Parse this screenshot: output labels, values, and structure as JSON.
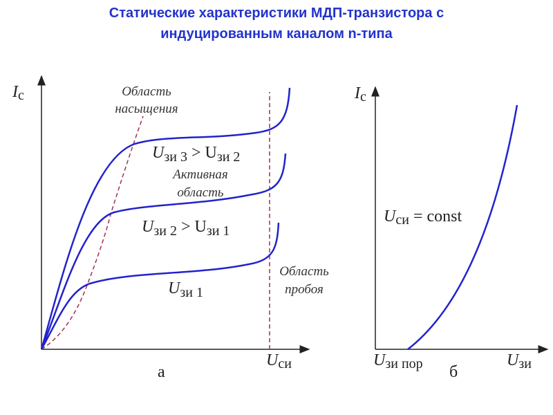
{
  "title": {
    "line1": "Статические характеристики МДП-транзистора с",
    "line2": "индуцированным каналом n-типа"
  },
  "chart_a": {
    "y_label": {
      "symbol": "I",
      "sub": "с"
    },
    "x_label": {
      "symbol": "U",
      "sub": "си"
    },
    "caption": "а",
    "saturation_region": [
      "Область",
      "насыщения"
    ],
    "gate_labels": [
      [
        "U",
        "зи 3",
        " > U",
        "зи 2"
      ],
      [
        "U",
        "зи 2",
        " > U",
        "зи 1"
      ],
      [
        "U",
        "зи 1"
      ]
    ],
    "active_region": [
      "Активная",
      "область"
    ],
    "breakdown_region": [
      "Область",
      "пробоя"
    ]
  },
  "chart_b": {
    "y_label": {
      "symbol": "I",
      "sub": "с"
    },
    "x_label": {
      "symbol": "U",
      "sub": "зи"
    },
    "threshold_label": {
      "symbol": "U",
      "sub": "зи пор"
    },
    "condition": [
      "U",
      "си",
      " = const"
    ],
    "caption": "б"
  }
}
